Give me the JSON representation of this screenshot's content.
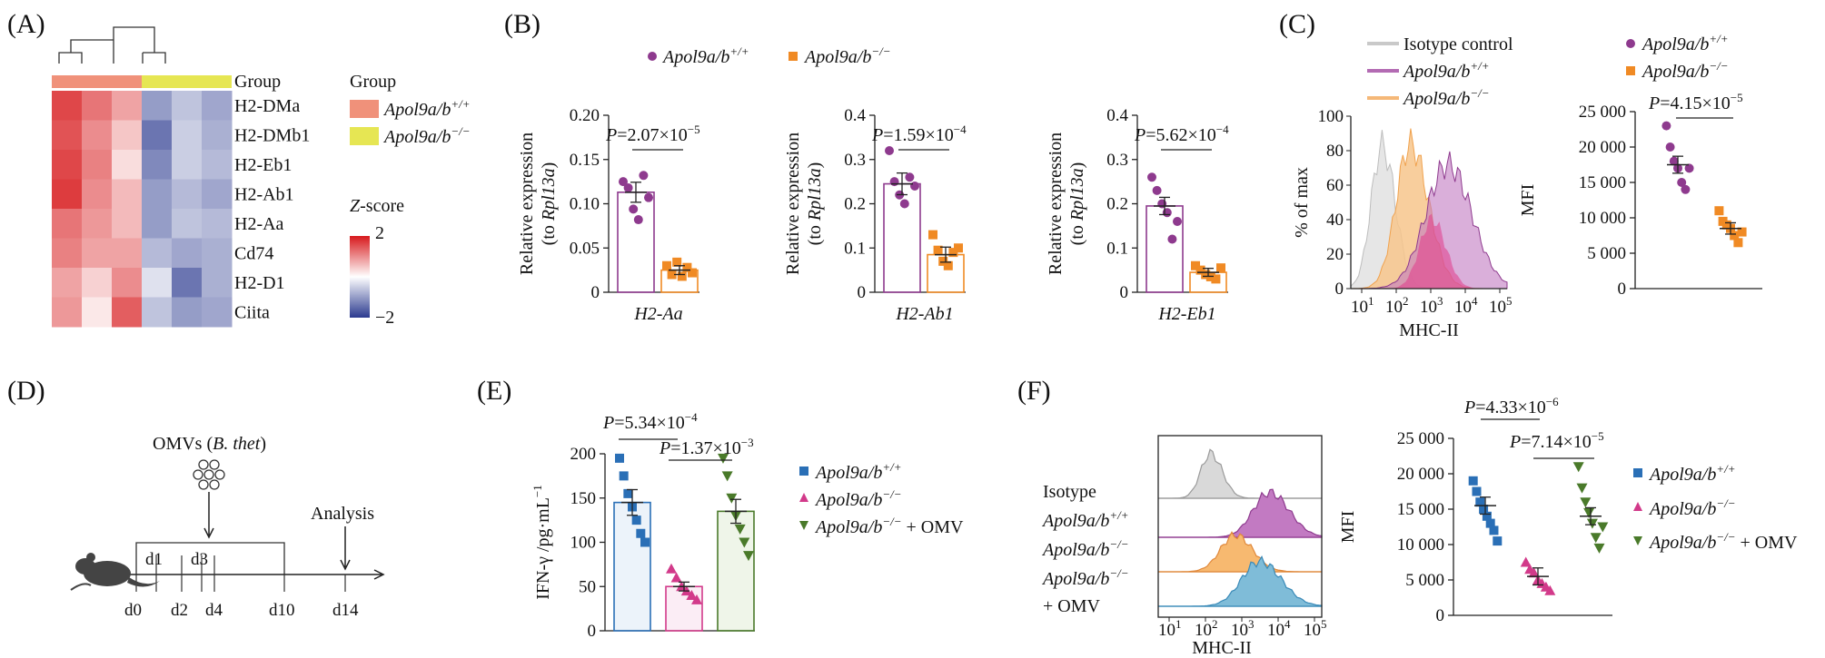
{
  "figure": {
    "panel_labels": [
      "(A)",
      "(B)",
      "(C)",
      "(D)",
      "(E)",
      "(F)"
    ],
    "colors": {
      "wt": "#8e3a8e",
      "ko": "#f08a24",
      "ko_omv": "#4a7a2a",
      "wt_blue": "#2a6fb6",
      "ko_pink": "#d23a8a",
      "group_wt": "#f0917a",
      "group_ko": "#e6e653",
      "heat_high": "#d7191c",
      "heat_low": "#2b3a8f"
    }
  },
  "panelA": {
    "label": "(A)",
    "group_row_label": "Group",
    "genes": [
      "H2-DMa",
      "H2-DMb1",
      "H2-Eb1",
      "H2-Ab1",
      "H2-Aa",
      "Cd74",
      "H2-D1",
      "Ciita"
    ],
    "legend_group_title": "Group",
    "legend_items": [
      {
        "base": "Apol9a/b",
        "sup": "+/+"
      },
      {
        "base": "Apol9a/b",
        "sup": "−/−"
      }
    ],
    "zscore_title_italic": "Z",
    "zscore_title_rest": "-score",
    "zscore_max": "2",
    "zscore_min": "−2",
    "heatmap_values": [
      [
        1.6,
        1.2,
        0.8,
        -1.0,
        -0.6,
        -0.9
      ],
      [
        1.5,
        1.0,
        0.5,
        -1.4,
        -0.5,
        -0.8
      ],
      [
        1.6,
        1.1,
        0.3,
        -1.2,
        -0.5,
        -0.7
      ],
      [
        1.7,
        1.0,
        0.6,
        -1.0,
        -0.7,
        -0.9
      ],
      [
        1.2,
        0.9,
        0.6,
        -1.0,
        -0.6,
        -0.7
      ],
      [
        1.1,
        0.8,
        0.8,
        -0.7,
        -0.9,
        -0.8
      ],
      [
        0.8,
        0.4,
        1.0,
        -0.3,
        -1.4,
        -0.8
      ],
      [
        0.9,
        0.2,
        1.4,
        -0.6,
        -1.0,
        -0.9
      ]
    ]
  },
  "panelB": {
    "label": "(B)",
    "legend": [
      {
        "base": "Apol9a/b",
        "sup": "+/+"
      },
      {
        "base": "Apol9a/b",
        "sup": "−/−"
      }
    ],
    "ylabel_line1": "Relative expression",
    "ylabel_line2_pre": "(to ",
    "ylabel_line2_it": "Rpl13a",
    "ylabel_line2_post": ")",
    "charts": [
      {
        "gene": "H2-Aa",
        "p_pre": "=2.07×10",
        "p_exp": "−5",
        "ticks": [
          "0",
          "0.05",
          "0.10",
          "0.15",
          "0.20"
        ],
        "ymax": 0.2,
        "wt_mean": 0.113,
        "ko_mean": 0.025,
        "wt_points": [
          0.125,
          0.118,
          0.094,
          0.082,
          0.132,
          0.107
        ],
        "ko_points": [
          0.03,
          0.02,
          0.034,
          0.018,
          0.028,
          0.022
        ]
      },
      {
        "gene": "H2-Ab1",
        "p_pre": "=1.59×10",
        "p_exp": "−4",
        "ticks": [
          "0",
          "0.1",
          "0.2",
          "0.3",
          "0.4"
        ],
        "ymax": 0.4,
        "wt_mean": 0.245,
        "ko_mean": 0.085,
        "wt_points": [
          0.32,
          0.25,
          0.22,
          0.2,
          0.26,
          0.24
        ],
        "ko_points": [
          0.13,
          0.095,
          0.07,
          0.06,
          0.09,
          0.1
        ]
      },
      {
        "gene": "H2-Eb1",
        "p_pre": "=5.62×10",
        "p_exp": "−4",
        "ticks": [
          "0",
          "0.1",
          "0.2",
          "0.3",
          "0.4"
        ],
        "ymax": 0.4,
        "wt_mean": 0.195,
        "ko_mean": 0.045,
        "wt_points": [
          0.26,
          0.23,
          0.2,
          0.18,
          0.12,
          0.16
        ],
        "ko_points": [
          0.06,
          0.05,
          0.04,
          0.035,
          0.03,
          0.055
        ]
      }
    ]
  },
  "panelC": {
    "label": "(C)",
    "hist_legend": [
      {
        "base": "Isotype control",
        "sup": "",
        "italic": false
      },
      {
        "base": "Apol9a/b",
        "sup": "+/+",
        "italic": true
      },
      {
        "base": "Apol9a/b",
        "sup": "−/−",
        "italic": true
      }
    ],
    "hist_ylabel": "% of max",
    "hist_yticks": [
      "0",
      "20",
      "40",
      "60",
      "80",
      "100"
    ],
    "hist_xlabel": "MHC-II",
    "hist_xticks": [
      {
        "b": "10",
        "e": "1"
      },
      {
        "b": "10",
        "e": "2"
      },
      {
        "b": "10",
        "e": "3"
      },
      {
        "b": "10",
        "e": "4"
      },
      {
        "b": "10",
        "e": "5"
      }
    ],
    "mfi_ylabel": "MFI",
    "mfi_ticks": [
      "0",
      "5 000",
      "10 000",
      "15 000",
      "20 000",
      "25 000"
    ],
    "mfi_ymax": 25000,
    "mfi_p_pre": "=4.15×10",
    "mfi_p_exp": "−5",
    "mfi_legend": [
      {
        "base": "Apol9a/b",
        "sup": "+/+"
      },
      {
        "base": "Apol9a/b",
        "sup": "−/−"
      }
    ],
    "wt_mean": 17500,
    "ko_mean": 8500,
    "wt_points": [
      23000,
      20000,
      18000,
      17000,
      15000,
      14000,
      17000
    ],
    "ko_points": [
      11000,
      9500,
      9000,
      8500,
      7500,
      6500,
      8000
    ]
  },
  "panelD": {
    "label": "(D)",
    "omv_pre": "OMVs (",
    "omv_it": "B. thet",
    "omv_post": ")",
    "analysis": "Analysis",
    "days_above": [
      "d1",
      "d3"
    ],
    "days_below": [
      "d0",
      "d2",
      "d4",
      "d10",
      "d14"
    ]
  },
  "panelE": {
    "label": "(E)",
    "ylabel": "IFN-γ /pg·mL",
    "ylabel_exp": "−1",
    "ticks": [
      "0",
      "50",
      "100",
      "150",
      "200"
    ],
    "ymax": 200,
    "p1_pre": "=5.34×10",
    "p1_exp": "−4",
    "p2_pre": "=1.37×10",
    "p2_exp": "−3",
    "groups": [
      {
        "mean": 145,
        "points": [
          195,
          175,
          155,
          140,
          125,
          110,
          100
        ]
      },
      {
        "mean": 50,
        "points": [
          70,
          60,
          50,
          45,
          40,
          35
        ]
      },
      {
        "mean": 135,
        "points": [
          195,
          175,
          150,
          130,
          115,
          100,
          85
        ]
      }
    ],
    "legend": [
      {
        "base": "Apol9a/b",
        "sup": "+/+",
        "post": ""
      },
      {
        "base": "Apol9a/b",
        "sup": "−/−",
        "post": ""
      },
      {
        "base": "Apol9a/b",
        "sup": "−/−",
        "post": " + OMV"
      }
    ]
  },
  "panelF": {
    "label": "(F)",
    "hist_rows": [
      {
        "base": "Isotype",
        "sup": "",
        "italic": false,
        "post": ""
      },
      {
        "base": "Apol9a/b",
        "sup": "+/+",
        "italic": true,
        "post": ""
      },
      {
        "base": "Apol9a/b",
        "sup": "−/−",
        "italic": true,
        "post": ""
      },
      {
        "base": "Apol9a/b",
        "sup": "−/−",
        "italic": true,
        "post": ""
      }
    ],
    "omv_line": "+ OMV",
    "hist_xlabel": "MHC-II",
    "hist_xticks": [
      {
        "b": "10",
        "e": "1"
      },
      {
        "b": "10",
        "e": "2"
      },
      {
        "b": "10",
        "e": "3"
      },
      {
        "b": "10",
        "e": "4"
      },
      {
        "b": "10",
        "e": "5"
      }
    ],
    "mfi_ylabel": "MFI",
    "mfi_ticks": [
      "0",
      "5 000",
      "10 000",
      "15 000",
      "20 000",
      "25 000"
    ],
    "mfi_ymax": 25000,
    "p1_pre": "=4.33×10",
    "p1_exp": "−6",
    "p2_pre": "=7.14×10",
    "p2_exp": "−5",
    "groups": [
      {
        "mean": 15500,
        "points": [
          19000,
          17500,
          16000,
          15000,
          14000,
          13000,
          12000,
          10500
        ]
      },
      {
        "mean": 5500,
        "points": [
          7500,
          6500,
          6000,
          5000,
          4500,
          4000,
          3500
        ]
      },
      {
        "mean": 14000,
        "points": [
          21000,
          18000,
          16000,
          14500,
          13000,
          11000,
          9500,
          12500
        ]
      }
    ],
    "legend": [
      {
        "base": "Apol9a/b",
        "sup": "+/+",
        "post": ""
      },
      {
        "base": "Apol9a/b",
        "sup": "−/−",
        "post": ""
      },
      {
        "base": "Apol9a/b",
        "sup": "−/−",
        "post": " + OMV"
      }
    ]
  }
}
